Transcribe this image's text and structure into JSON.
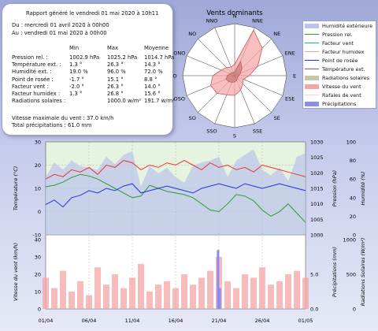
{
  "report": {
    "header": "Rapport généré le vendredi 01 mai 2020 à 10h11",
    "from": "Du : mercredi 01 avril 2020 à 00h00",
    "to": "Au : vendredi 01 mai 2020 à 00h00",
    "columns": [
      "Min",
      "Max",
      "Moyenne"
    ],
    "rows": [
      {
        "label": "Pression rel. :",
        "min": "1002.9 hPa",
        "max": "1025.2 hPa",
        "avg": "1014.7 hPa"
      },
      {
        "label": "Température ext. :",
        "min": "1.3 °",
        "max": "26.3 °",
        "avg": "14.3 °"
      },
      {
        "label": "Humidité ext. :",
        "min": "19.0 %",
        "max": "96.0 %",
        "avg": "72.0 %"
      },
      {
        "label": "Point de rosée :",
        "min": "-1.7 °",
        "max": "15.1 °",
        "avg": "8.8 °"
      },
      {
        "label": "Facteur vent :",
        "min": "-2.0 °",
        "max": "26.3 °",
        "avg": "14.0 °"
      },
      {
        "label": "Facteur humidex :",
        "min": "1.3 °",
        "max": "26.8 °",
        "avg": "15.6 °"
      },
      {
        "label": "Radiations solaires :",
        "min": "",
        "max": "1000.0 w/m²",
        "avg": "191.7 w/m²"
      }
    ],
    "max_wind": "Vitesse maximale du vent : 37.0 km/h",
    "total_rain": "Total précipitations : 61.0 mm"
  },
  "legend": [
    {
      "label": "Humidité extérieure",
      "color": "#b9c3ec",
      "kind": "area"
    },
    {
      "label": "Pression rel.",
      "color": "#2f9a2f",
      "kind": "line"
    },
    {
      "label": "Facteur vent",
      "color": "#1aa8c8",
      "kind": "line"
    },
    {
      "label": "Facteur humidex",
      "color": "#f0a0a8",
      "kind": "line"
    },
    {
      "label": "Point de rosée",
      "color": "#2233dd",
      "kind": "line"
    },
    {
      "label": "Température ext.",
      "color": "#ee3333",
      "kind": "line"
    },
    {
      "label": "Radiations solaires",
      "color": "#c8c6a6",
      "kind": "area"
    },
    {
      "label": "Vitesse du vent",
      "color": "#f4a4a4",
      "kind": "area"
    },
    {
      "label": "Rafales de vent",
      "color": "#ffd0d0",
      "kind": "line"
    },
    {
      "label": "Précipitations",
      "color": "#8c8cf0",
      "kind": "area"
    }
  ],
  "chart_data": [
    {
      "type": "radar",
      "title": "Vents dominants",
      "directions": [
        "N",
        "NNE",
        "NE",
        "ENE",
        "E",
        "ESE",
        "SE",
        "SSE",
        "S",
        "SSO",
        "SO",
        "OSO",
        "O",
        "ONO",
        "NO",
        "NNO"
      ],
      "series": [
        {
          "values": [
            0.22,
            0.95,
            0.75,
            0.48,
            0.28,
            0.18,
            0.22,
            0.3,
            0.38,
            0.4,
            0.48,
            0.5,
            0.42,
            0.28,
            0.22,
            0.18
          ],
          "color": "#f4a4a4"
        },
        {
          "values": [
            0.08,
            0.3,
            0.2,
            0.12,
            0.08,
            0.06,
            0.08,
            0.1,
            0.12,
            0.14,
            0.16,
            0.18,
            0.14,
            0.1,
            0.08,
            0.06
          ],
          "color": "#c07070"
        }
      ]
    },
    {
      "type": "line",
      "x_ticks": [
        "01/04",
        "06/04",
        "11/04",
        "16/04",
        "21/04",
        "26/04",
        "01/05"
      ],
      "x_range": [
        0,
        30
      ],
      "temperature_axis": {
        "label": "Température (°C)",
        "range": [
          -10,
          30
        ],
        "ticks": [
          -10,
          0,
          10,
          20,
          30
        ]
      },
      "pressure_axis": {
        "label": "Pression (hPa)",
        "range": [
          1000,
          1030
        ],
        "ticks": [
          1000,
          1005,
          1010,
          1015,
          1020,
          1025,
          1030
        ]
      },
      "humidity_axis": {
        "label": "Humidité (%)",
        "range": [
          0,
          100
        ],
        "ticks": [
          0,
          20,
          40,
          60,
          80,
          100
        ]
      },
      "series": [
        {
          "name": "Humidité extérieure",
          "axis": "humidity",
          "x": [
            0,
            1,
            2,
            3,
            4,
            5,
            6,
            7,
            8,
            9,
            10,
            11,
            12,
            13,
            14,
            15,
            16,
            17,
            18,
            19,
            20,
            21,
            22,
            23,
            24,
            25,
            26,
            27,
            28,
            29,
            30
          ],
          "values": [
            62,
            78,
            70,
            80,
            74,
            72,
            70,
            84,
            76,
            86,
            90,
            52,
            74,
            66,
            72,
            62,
            56,
            74,
            78,
            80,
            84,
            62,
            80,
            86,
            92,
            70,
            64,
            72,
            58,
            84,
            88
          ]
        },
        {
          "name": "Pression rel.",
          "axis": "pressure",
          "x": [
            0,
            1,
            2,
            3,
            4,
            5,
            6,
            7,
            8,
            9,
            10,
            11,
            12,
            13,
            14,
            15,
            16,
            17,
            18,
            19,
            20,
            21,
            22,
            23,
            24,
            25,
            26,
            27,
            28,
            29,
            30
          ],
          "values": [
            1015.5,
            1016,
            1017,
            1018.5,
            1019.5,
            1019,
            1018,
            1016.5,
            1015,
            1013.5,
            1012,
            1012.5,
            1016,
            1015,
            1014,
            1013.5,
            1013,
            1012,
            1010,
            1008,
            1007.5,
            1010,
            1013,
            1012.5,
            1011,
            1008,
            1006,
            1007.5,
            1010,
            1007,
            1004
          ]
        },
        {
          "name": "Température ext.",
          "axis": "temperature",
          "x": [
            0,
            1,
            2,
            3,
            4,
            5,
            6,
            7,
            8,
            9,
            10,
            11,
            12,
            13,
            14,
            15,
            16,
            17,
            18,
            19,
            20,
            21,
            22,
            23,
            24,
            25,
            26,
            27,
            28,
            29,
            30
          ],
          "values": [
            14,
            16,
            15,
            18,
            17,
            19,
            16,
            20,
            19,
            22,
            21,
            18,
            20,
            19,
            21,
            20,
            22,
            20,
            18,
            21,
            19,
            20,
            18,
            19,
            17,
            20,
            19,
            18,
            17,
            16,
            15
          ]
        },
        {
          "name": "Point de rosée",
          "axis": "temperature",
          "x": [
            0,
            1,
            2,
            3,
            4,
            5,
            6,
            7,
            8,
            9,
            10,
            11,
            12,
            13,
            14,
            15,
            16,
            17,
            18,
            19,
            20,
            21,
            22,
            23,
            24,
            25,
            26,
            27,
            28,
            29,
            30
          ],
          "values": [
            3,
            5,
            2,
            6,
            7,
            9,
            8,
            10,
            9,
            11,
            12,
            8,
            9,
            10,
            11,
            10,
            9,
            8,
            10,
            11,
            12,
            11,
            10,
            12,
            11,
            10,
            11,
            12,
            11,
            10,
            9
          ]
        }
      ]
    },
    {
      "type": "bar",
      "x_ticks": [
        "01/04",
        "06/04",
        "11/04",
        "16/04",
        "21/04",
        "26/04",
        "01/05"
      ],
      "x_range": [
        0,
        30
      ],
      "wind_axis": {
        "label": "Vitesse du vent (km/h)",
        "range": [
          0,
          40
        ],
        "ticks": [
          0,
          10,
          20,
          30,
          40
        ]
      },
      "rain_axis": {
        "label": "Précipitations (mm)",
        "range": [
          0,
          10
        ],
        "ticks": [
          0,
          5
        ]
      },
      "solar_axis": {
        "label": "Radiations Solaires (W/m²)",
        "range": [
          0,
          1000
        ],
        "ticks": [
          0,
          500,
          1000
        ]
      },
      "series": [
        {
          "name": "Vitesse du vent",
          "axis": "wind",
          "x": [
            0,
            1,
            2,
            3,
            4,
            5,
            6,
            7,
            8,
            9,
            10,
            11,
            12,
            13,
            14,
            15,
            16,
            17,
            18,
            19,
            20,
            21,
            22,
            23,
            24,
            25,
            26,
            27,
            28,
            29,
            30
          ],
          "values": [
            18,
            12,
            22,
            10,
            16,
            8,
            24,
            14,
            20,
            12,
            18,
            26,
            10,
            14,
            16,
            12,
            20,
            14,
            18,
            22,
            30,
            16,
            12,
            20,
            18,
            24,
            14,
            16,
            20,
            22,
            18
          ]
        },
        {
          "name": "Précipitations",
          "axis": "rain",
          "x": [
            19.9,
            20.1
          ],
          "values": [
            8.5,
            3
          ]
        }
      ]
    }
  ]
}
